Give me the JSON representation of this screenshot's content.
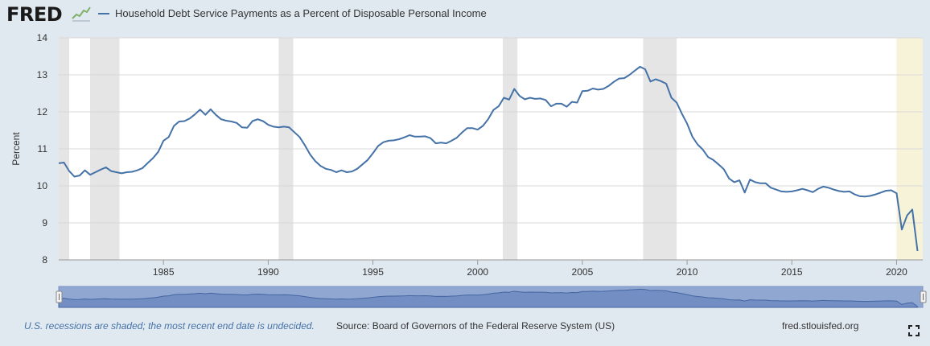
{
  "header": {
    "logo_text": "FRED",
    "series_label": "Household Debt Service Payments as a Percent of Disposable Personal Income"
  },
  "footer": {
    "recession_note": "U.S. recessions are shaded; the most recent end date is undecided.",
    "source": "Source: Board of Governors of the Federal Reserve System (US)",
    "site": "fred.stlouisfed.org"
  },
  "icons": {
    "logo_mark": "fred-chart-icon",
    "fullscreen": "fullscreen-icon"
  },
  "colors": {
    "line": "#4572a7",
    "recession": "#e5e5e5",
    "undecided_recession": "#f6f3d9",
    "background": "#e1e9f0"
  },
  "chart_data": {
    "type": "line",
    "title": "Household Debt Service Payments as a Percent of Disposable Personal Income",
    "ylabel": "Percent",
    "xlabel": "",
    "ylim": [
      8,
      14
    ],
    "xlim": [
      1980,
      2021.25
    ],
    "x_ticks": [
      "1985",
      "1990",
      "1995",
      "2000",
      "2005",
      "2010",
      "2015",
      "2020"
    ],
    "y_ticks": [
      "8",
      "9",
      "10",
      "11",
      "12",
      "13",
      "14"
    ],
    "grid": "horizontal",
    "recessions": [
      {
        "start": 1980.0,
        "end": 1980.5
      },
      {
        "start": 1981.5,
        "end": 1982.9
      },
      {
        "start": 1990.5,
        "end": 1991.2
      },
      {
        "start": 2001.2,
        "end": 2001.9
      },
      {
        "start": 2007.9,
        "end": 2009.5
      }
    ],
    "recession_undecided": {
      "start": 2020.0,
      "end": 2021.25
    },
    "series": [
      {
        "name": "Household Debt Service Payments as a Percent of Disposable Personal Income",
        "x": [
          1980.0,
          1980.25,
          1980.5,
          1980.75,
          1981.0,
          1981.25,
          1981.5,
          1981.75,
          1982.0,
          1982.25,
          1982.5,
          1982.75,
          1983.0,
          1983.25,
          1983.5,
          1983.75,
          1984.0,
          1984.25,
          1984.5,
          1984.75,
          1985.0,
          1985.25,
          1985.5,
          1985.75,
          1986.0,
          1986.25,
          1986.5,
          1986.75,
          1987.0,
          1987.25,
          1987.5,
          1987.75,
          1988.0,
          1988.25,
          1988.5,
          1988.75,
          1989.0,
          1989.25,
          1989.5,
          1989.75,
          1990.0,
          1990.25,
          1990.5,
          1990.75,
          1991.0,
          1991.25,
          1991.5,
          1991.75,
          1992.0,
          1992.25,
          1992.5,
          1992.75,
          1993.0,
          1993.25,
          1993.5,
          1993.75,
          1994.0,
          1994.25,
          1994.5,
          1994.75,
          1995.0,
          1995.25,
          1995.5,
          1995.75,
          1996.0,
          1996.25,
          1996.5,
          1996.75,
          1997.0,
          1997.25,
          1997.5,
          1997.75,
          1998.0,
          1998.25,
          1998.5,
          1998.75,
          1999.0,
          1999.25,
          1999.5,
          1999.75,
          2000.0,
          2000.25,
          2000.5,
          2000.75,
          2001.0,
          2001.25,
          2001.5,
          2001.75,
          2002.0,
          2002.25,
          2002.5,
          2002.75,
          2003.0,
          2003.25,
          2003.5,
          2003.75,
          2004.0,
          2004.25,
          2004.5,
          2004.75,
          2005.0,
          2005.25,
          2005.5,
          2005.75,
          2006.0,
          2006.25,
          2006.5,
          2006.75,
          2007.0,
          2007.25,
          2007.5,
          2007.75,
          2008.0,
          2008.25,
          2008.5,
          2008.75,
          2009.0,
          2009.25,
          2009.5,
          2009.75,
          2010.0,
          2010.25,
          2010.5,
          2010.75,
          2011.0,
          2011.25,
          2011.5,
          2011.75,
          2012.0,
          2012.25,
          2012.5,
          2012.75,
          2013.0,
          2013.25,
          2013.5,
          2013.75,
          2014.0,
          2014.25,
          2014.5,
          2014.75,
          2015.0,
          2015.25,
          2015.5,
          2015.75,
          2016.0,
          2016.25,
          2016.5,
          2016.75,
          2017.0,
          2017.25,
          2017.5,
          2017.75,
          2018.0,
          2018.25,
          2018.5,
          2018.75,
          2019.0,
          2019.25,
          2019.5,
          2019.75,
          2020.0,
          2020.25,
          2020.5,
          2020.75,
          2021.0
        ],
        "values": [
          10.61,
          10.63,
          10.4,
          10.25,
          10.28,
          10.42,
          10.3,
          10.37,
          10.44,
          10.5,
          10.4,
          10.37,
          10.34,
          10.37,
          10.38,
          10.42,
          10.48,
          10.62,
          10.75,
          10.92,
          11.22,
          11.32,
          11.62,
          11.74,
          11.75,
          11.82,
          11.93,
          12.06,
          11.92,
          12.07,
          11.92,
          11.8,
          11.76,
          11.74,
          11.7,
          11.58,
          11.57,
          11.75,
          11.8,
          11.75,
          11.65,
          11.6,
          11.58,
          11.6,
          11.58,
          11.45,
          11.32,
          11.1,
          10.85,
          10.67,
          10.54,
          10.46,
          10.43,
          10.37,
          10.42,
          10.37,
          10.39,
          10.46,
          10.58,
          10.7,
          10.88,
          11.08,
          11.18,
          11.22,
          11.23,
          11.26,
          11.31,
          11.37,
          11.33,
          11.33,
          11.34,
          11.29,
          11.15,
          11.17,
          11.15,
          11.22,
          11.3,
          11.44,
          11.56,
          11.56,
          11.52,
          11.62,
          11.8,
          12.05,
          12.15,
          12.38,
          12.33,
          12.62,
          12.43,
          12.34,
          12.38,
          12.35,
          12.36,
          12.32,
          12.15,
          12.22,
          12.22,
          12.14,
          12.27,
          12.25,
          12.56,
          12.57,
          12.63,
          12.6,
          12.62,
          12.7,
          12.81,
          12.9,
          12.91,
          13.0,
          13.11,
          13.22,
          13.15,
          12.82,
          12.88,
          12.83,
          12.76,
          12.38,
          12.25,
          11.95,
          11.68,
          11.33,
          11.12,
          10.98,
          10.78,
          10.7,
          10.58,
          10.45,
          10.2,
          10.1,
          10.15,
          9.82,
          10.17,
          10.1,
          10.07,
          10.07,
          9.95,
          9.9,
          9.85,
          9.84,
          9.85,
          9.88,
          9.92,
          9.88,
          9.83,
          9.92,
          9.98,
          9.95,
          9.9,
          9.86,
          9.84,
          9.85,
          9.77,
          9.72,
          9.71,
          9.73,
          9.77,
          9.82,
          9.87,
          9.88,
          9.8,
          8.82,
          9.2,
          9.36,
          8.24
        ]
      }
    ]
  }
}
